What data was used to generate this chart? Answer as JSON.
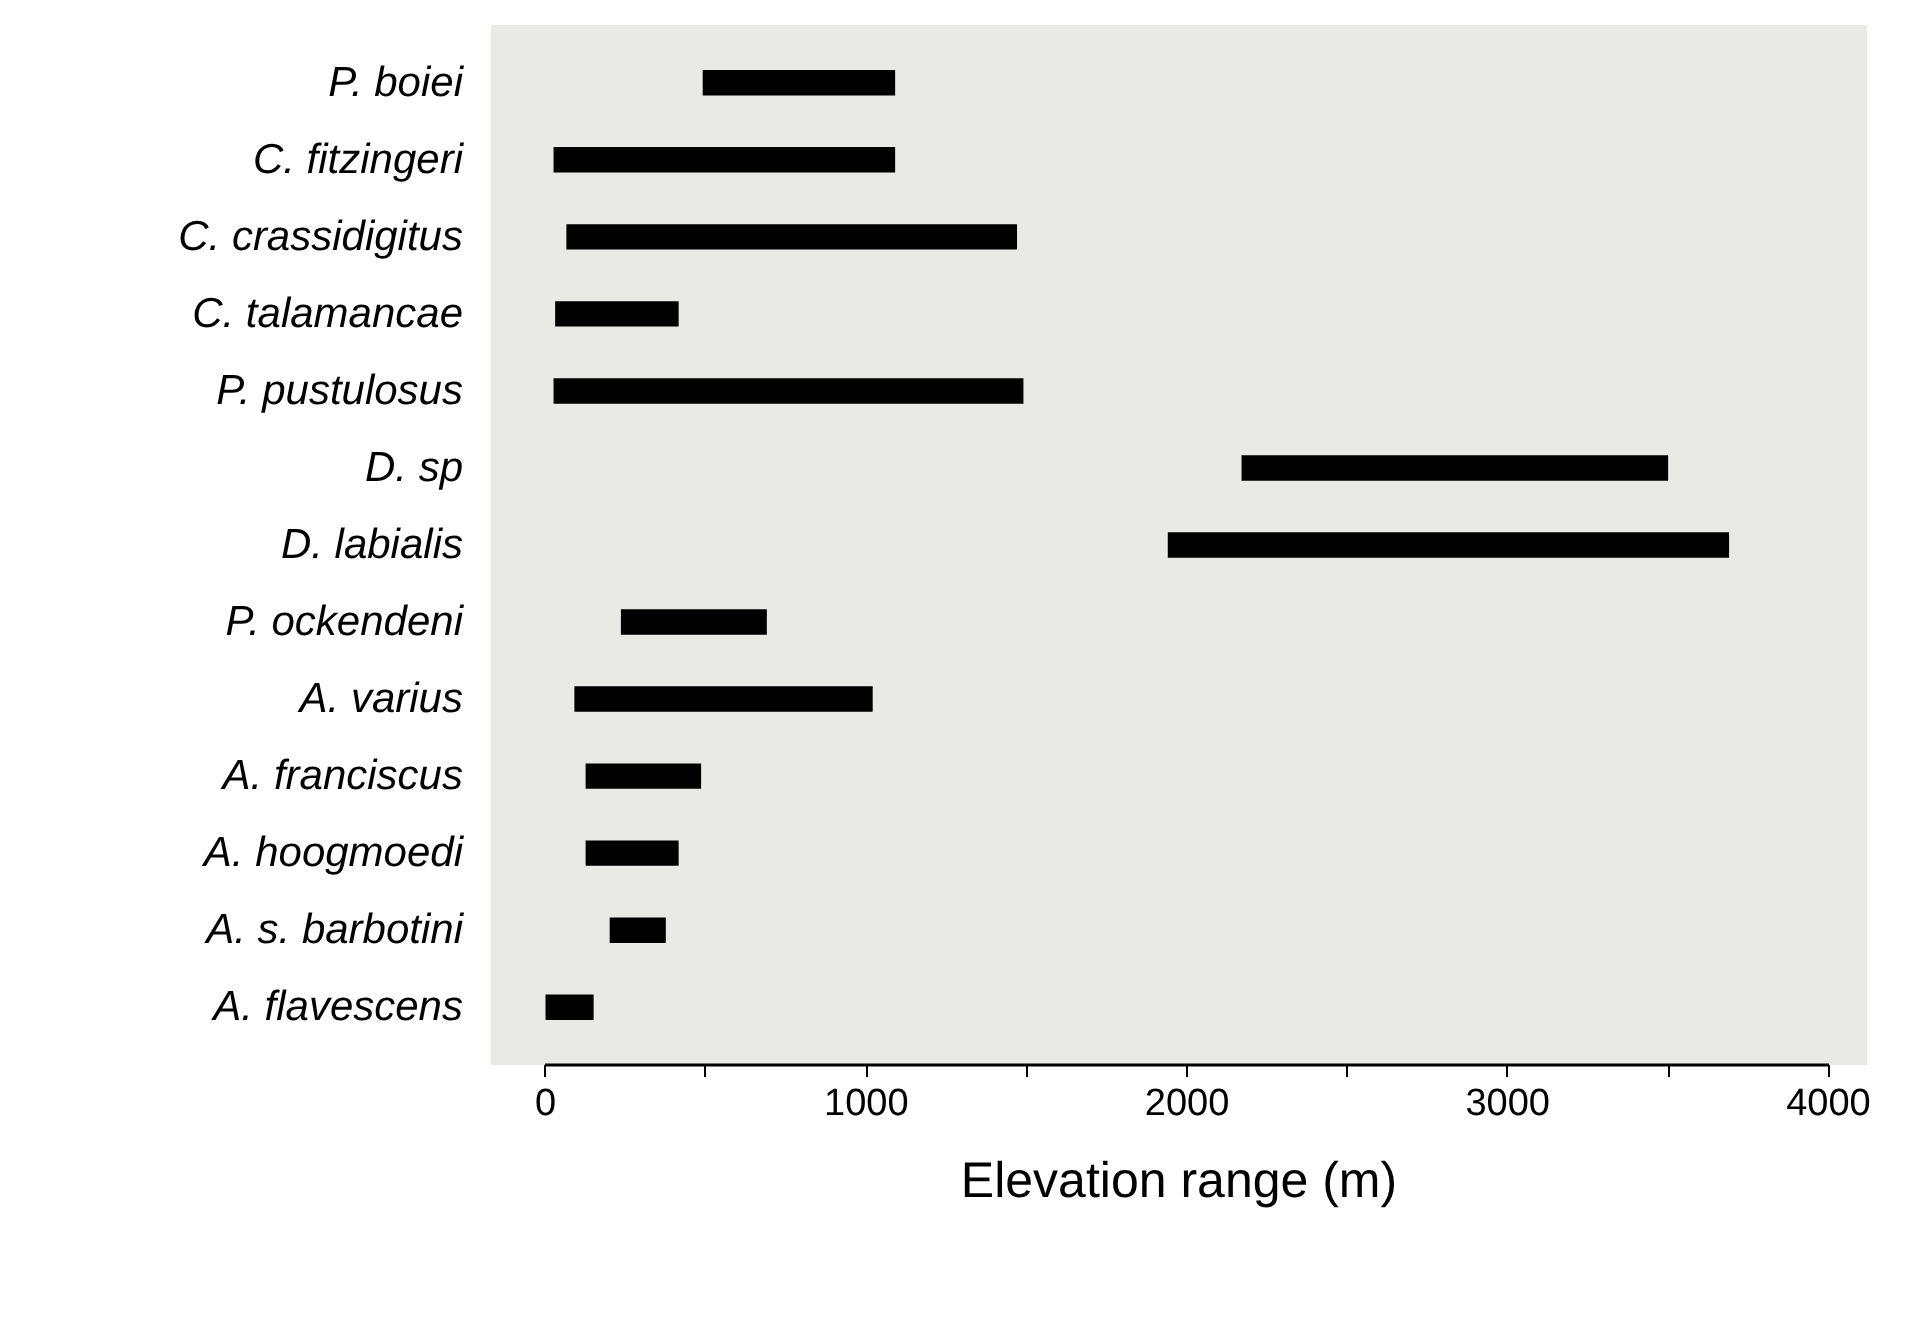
{
  "chart_data": {
    "type": "bar",
    "orientation": "horizontal",
    "xlabel": "Elevation range (m)",
    "categories": [
      "P. boiei",
      "C. fitzingeri",
      "C. crassidigitus",
      "C. talamancae",
      "P. pustulosus",
      "D. sp",
      "D. labialis",
      "P. ockendeni",
      "A. varius",
      "A. franciscus",
      "A. hoogmoedi",
      "A. s. barbotini",
      "A. flavescens"
    ],
    "base": [
      490,
      25,
      65,
      30,
      25,
      2170,
      1940,
      235,
      90,
      125,
      125,
      200,
      0
    ],
    "values": [
      600,
      1065,
      1405,
      385,
      1465,
      1330,
      1750,
      455,
      930,
      360,
      290,
      175,
      150
    ],
    "color": "#000000",
    "xlim": [
      -170,
      4120
    ],
    "xticks": [
      0,
      {
        "value": 500,
        "label": null
      },
      1000,
      {
        "value": 1500,
        "label": null
      },
      2000,
      {
        "value": 2500,
        "label": null
      },
      3000,
      {
        "value": 3500,
        "label": null
      },
      4000
    ]
  }
}
